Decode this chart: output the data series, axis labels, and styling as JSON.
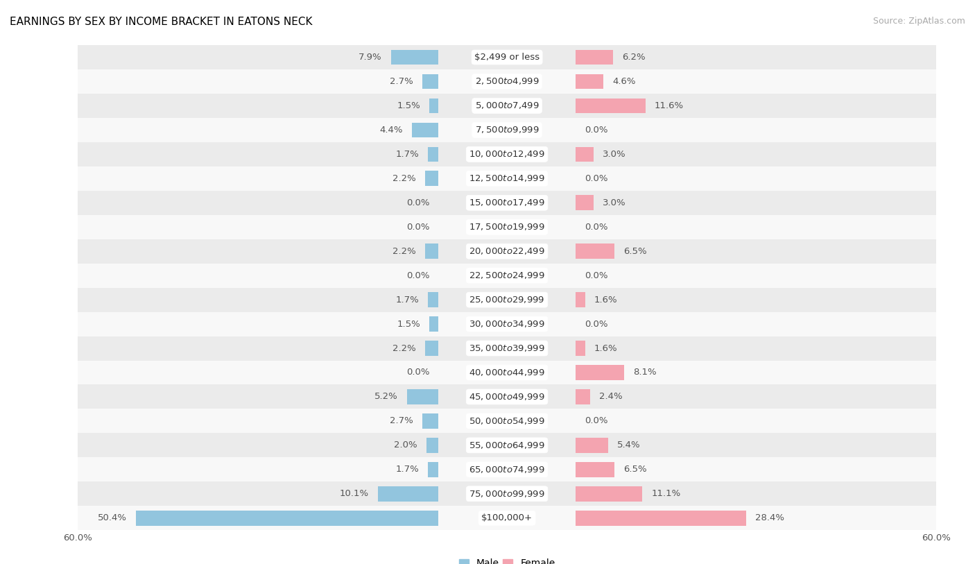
{
  "title": "EARNINGS BY SEX BY INCOME BRACKET IN EATONS NECK",
  "source": "Source: ZipAtlas.com",
  "categories": [
    "$2,499 or less",
    "$2,500 to $4,999",
    "$5,000 to $7,499",
    "$7,500 to $9,999",
    "$10,000 to $12,499",
    "$12,500 to $14,999",
    "$15,000 to $17,499",
    "$17,500 to $19,999",
    "$20,000 to $22,499",
    "$22,500 to $24,999",
    "$25,000 to $29,999",
    "$30,000 to $34,999",
    "$35,000 to $39,999",
    "$40,000 to $44,999",
    "$45,000 to $49,999",
    "$50,000 to $54,999",
    "$55,000 to $64,999",
    "$65,000 to $74,999",
    "$75,000 to $99,999",
    "$100,000+"
  ],
  "male_values": [
    7.9,
    2.7,
    1.5,
    4.4,
    1.7,
    2.2,
    0.0,
    0.0,
    2.2,
    0.0,
    1.7,
    1.5,
    2.2,
    0.0,
    5.2,
    2.7,
    2.0,
    1.7,
    10.1,
    50.4
  ],
  "female_values": [
    6.2,
    4.6,
    11.6,
    0.0,
    3.0,
    0.0,
    3.0,
    0.0,
    6.5,
    0.0,
    1.6,
    0.0,
    1.6,
    8.1,
    2.4,
    0.0,
    5.4,
    6.5,
    11.1,
    28.4
  ],
  "male_color": "#92c5de",
  "female_color": "#f4a4b0",
  "axis_max": 60.0,
  "bg_color_odd": "#ebebeb",
  "bg_color_even": "#f8f8f8",
  "bar_height": 0.62,
  "value_fontsize": 9.5,
  "cat_fontsize": 9.5,
  "title_fontsize": 11,
  "source_fontsize": 9
}
